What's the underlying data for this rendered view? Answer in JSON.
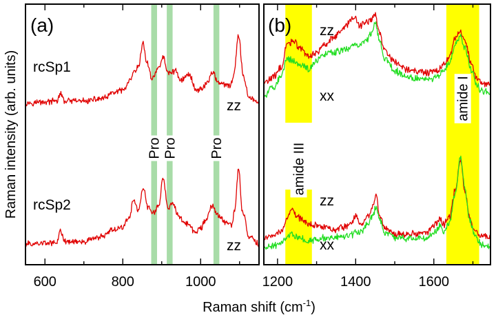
{
  "figure": {
    "ylabel": "Raman intensity (arb. units)",
    "xlabel_main": "Raman shift (cm",
    "xlabel_sup": "-1",
    "xlabel_close": ")"
  },
  "chart_data": [
    {
      "type": "line",
      "panel": "(a)",
      "xlabel": "Raman shift (cm-1)",
      "ylabel": "Raman intensity (arb. units)",
      "xlim": [
        550,
        1150
      ],
      "xticks": [
        "600",
        "800",
        "1000"
      ],
      "yticks": [],
      "grid": false,
      "colors": {
        "zz": "#e00000",
        "band": "#a8dca8"
      },
      "bands": [
        {
          "label": "Pro",
          "x": [
            873,
            888
          ]
        },
        {
          "label": "Pro",
          "x": [
            913,
            928
          ]
        },
        {
          "label": "Pro",
          "x": [
            1033,
            1048
          ]
        }
      ],
      "series": [
        {
          "name": "rcSp1",
          "polarization": "zz",
          "color": "#e00000",
          "peaks_cm1": [
            640,
            828,
            852,
            904,
            935,
            970,
            1030,
            1097
          ],
          "x": [
            550,
            600,
            630,
            640,
            650,
            700,
            750,
            780,
            800,
            820,
            828,
            840,
            852,
            862,
            875,
            890,
            904,
            915,
            935,
            950,
            970,
            990,
            1005,
            1020,
            1030,
            1045,
            1060,
            1075,
            1085,
            1097,
            1110,
            1125,
            1150
          ],
          "y": [
            0.1,
            0.11,
            0.12,
            0.2,
            0.12,
            0.12,
            0.15,
            0.22,
            0.24,
            0.35,
            0.44,
            0.5,
            0.78,
            0.55,
            0.38,
            0.48,
            0.62,
            0.44,
            0.46,
            0.36,
            0.42,
            0.24,
            0.27,
            0.35,
            0.45,
            0.34,
            0.3,
            0.29,
            0.4,
            0.86,
            0.4,
            0.16,
            0.1
          ]
        },
        {
          "name": "rcSp2",
          "polarization": "zz",
          "color": "#e00000",
          "peaks_cm1": [
            640,
            775,
            828,
            852,
            904,
            935,
            965,
            1030,
            1097
          ],
          "x": [
            550,
            600,
            630,
            640,
            650,
            700,
            740,
            775,
            800,
            815,
            828,
            840,
            852,
            865,
            880,
            893,
            904,
            915,
            930,
            945,
            965,
            985,
            1000,
            1010,
            1030,
            1050,
            1065,
            1080,
            1088,
            1097,
            1108,
            1125,
            1150
          ],
          "y": [
            0.06,
            0.07,
            0.08,
            0.2,
            0.09,
            0.09,
            0.14,
            0.22,
            0.25,
            0.35,
            0.55,
            0.44,
            0.68,
            0.48,
            0.4,
            0.52,
            0.8,
            0.48,
            0.5,
            0.36,
            0.28,
            0.2,
            0.24,
            0.3,
            0.48,
            0.36,
            0.3,
            0.28,
            0.45,
            0.9,
            0.42,
            0.14,
            0.06
          ]
        }
      ]
    },
    {
      "type": "line",
      "panel": "(b)",
      "xlabel": "Raman shift (cm-1)",
      "xlim": [
        1165,
        1745
      ],
      "xticks": [
        "1200",
        "1400",
        "1600"
      ],
      "yticks": [],
      "grid": false,
      "colors": {
        "zz": "#e00000",
        "xx": "#22dd22",
        "band": "#ffff00"
      },
      "bands": [
        {
          "label": "amide III",
          "x": [
            1220,
            1288
          ]
        },
        {
          "label": "amide I",
          "x": [
            1632,
            1716
          ]
        }
      ],
      "series": [
        {
          "name": "rcSp1",
          "polarization": "zz",
          "color": "#e00000",
          "x": [
            1165,
            1190,
            1210,
            1225,
            1240,
            1258,
            1280,
            1300,
            1320,
            1340,
            1360,
            1380,
            1395,
            1410,
            1425,
            1440,
            1450,
            1460,
            1475,
            1500,
            1530,
            1560,
            1590,
            1610,
            1625,
            1640,
            1655,
            1668,
            1680,
            1695,
            1710,
            1725,
            1745
          ],
          "y": [
            0.32,
            0.38,
            0.48,
            0.7,
            0.74,
            0.66,
            0.58,
            0.62,
            0.7,
            0.76,
            0.82,
            0.9,
            0.98,
            0.88,
            0.92,
            0.94,
            1.0,
            0.82,
            0.64,
            0.52,
            0.46,
            0.44,
            0.42,
            0.44,
            0.5,
            0.58,
            0.76,
            0.82,
            0.72,
            0.52,
            0.36,
            0.32,
            0.3
          ]
        },
        {
          "name": "rcSp1",
          "polarization": "xx",
          "color": "#22dd22",
          "x": [
            1165,
            1190,
            1210,
            1225,
            1240,
            1258,
            1280,
            1300,
            1320,
            1340,
            1360,
            1380,
            1395,
            1410,
            1425,
            1440,
            1450,
            1460,
            1475,
            1500,
            1530,
            1560,
            1590,
            1610,
            1625,
            1640,
            1655,
            1668,
            1680,
            1695,
            1710,
            1725,
            1745
          ],
          "y": [
            0.2,
            0.28,
            0.4,
            0.56,
            0.54,
            0.5,
            0.46,
            0.54,
            0.6,
            0.62,
            0.64,
            0.66,
            0.7,
            0.7,
            0.72,
            0.8,
            0.92,
            0.76,
            0.56,
            0.44,
            0.38,
            0.36,
            0.36,
            0.38,
            0.44,
            0.52,
            0.7,
            0.78,
            0.66,
            0.46,
            0.3,
            0.24,
            0.22
          ]
        },
        {
          "name": "rcSp2",
          "polarization": "zz",
          "color": "#e00000",
          "x": [
            1165,
            1190,
            1210,
            1225,
            1238,
            1255,
            1275,
            1300,
            1320,
            1345,
            1370,
            1390,
            1400,
            1415,
            1430,
            1445,
            1452,
            1462,
            1475,
            1500,
            1540,
            1580,
            1605,
            1615,
            1625,
            1640,
            1655,
            1668,
            1680,
            1692,
            1705,
            1720,
            1745
          ],
          "y": [
            0.12,
            0.15,
            0.2,
            0.34,
            0.4,
            0.33,
            0.27,
            0.25,
            0.24,
            0.21,
            0.23,
            0.28,
            0.34,
            0.26,
            0.34,
            0.44,
            0.56,
            0.34,
            0.22,
            0.16,
            0.16,
            0.17,
            0.26,
            0.32,
            0.26,
            0.34,
            0.62,
            0.92,
            0.6,
            0.32,
            0.18,
            0.14,
            0.13
          ]
        },
        {
          "name": "rcSp2",
          "polarization": "xx",
          "color": "#22dd22",
          "x": [
            1165,
            1190,
            1210,
            1225,
            1238,
            1255,
            1275,
            1300,
            1320,
            1345,
            1370,
            1390,
            1400,
            1415,
            1430,
            1445,
            1452,
            1462,
            1475,
            1500,
            1540,
            1580,
            1605,
            1615,
            1625,
            1640,
            1655,
            1668,
            1680,
            1692,
            1705,
            1720,
            1745
          ],
          "y": [
            0.02,
            0.04,
            0.07,
            0.14,
            0.16,
            0.12,
            0.09,
            0.1,
            0.12,
            0.13,
            0.14,
            0.15,
            0.18,
            0.18,
            0.26,
            0.36,
            0.44,
            0.3,
            0.17,
            0.12,
            0.11,
            0.12,
            0.18,
            0.24,
            0.18,
            0.28,
            0.58,
            0.96,
            0.62,
            0.3,
            0.14,
            0.06,
            0.03
          ]
        }
      ]
    }
  ]
}
